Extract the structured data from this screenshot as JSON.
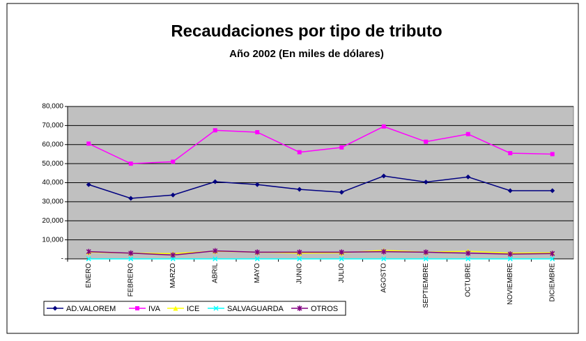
{
  "chart_data": {
    "type": "line",
    "title": "Recaudaciones por tipo de tributo",
    "subtitle": "Año 2002  (En miles de dólares)",
    "categories": [
      "ENERO",
      "FEBRERO",
      "MARZO",
      "ABRIL",
      "MAYO",
      "JUNIO",
      "JULIO",
      "AGOSTO",
      "SEPTIEMBRE",
      "OCTUBRE",
      "NOVIEMBRE",
      "DICIEMBRE"
    ],
    "series": [
      {
        "name": "AD.VALOREM",
        "color": "#000080",
        "values": [
          39000,
          31800,
          33500,
          40500,
          39000,
          36500,
          35000,
          43500,
          40300,
          43000,
          35800,
          35800
        ]
      },
      {
        "name": "IVA",
        "color": "#ff00ff",
        "values": [
          60500,
          50000,
          51000,
          67500,
          66500,
          56000,
          58500,
          69500,
          61500,
          65500,
          55500,
          55000
        ]
      },
      {
        "name": "ICE",
        "color": "#ffff00",
        "values": [
          3500,
          3000,
          2800,
          4000,
          3500,
          3000,
          3200,
          4500,
          3500,
          4000,
          3000,
          3200
        ]
      },
      {
        "name": "SALVAGUARDA",
        "color": "#00ffff",
        "values": [
          0,
          0,
          0,
          0,
          0,
          0,
          0,
          0,
          0,
          0,
          0,
          0
        ]
      },
      {
        "name": "OTROS",
        "color": "#800080",
        "values": [
          3800,
          3000,
          2000,
          4200,
          3500,
          3500,
          3500,
          3800,
          3500,
          3000,
          2500,
          2800
        ]
      }
    ],
    "ylim": [
      0,
      80000
    ],
    "yticks": [
      {
        "value": 0,
        "label": "-"
      },
      {
        "value": 10000,
        "label": "10,000"
      },
      {
        "value": 20000,
        "label": "20,000"
      },
      {
        "value": 30000,
        "label": "30,000"
      },
      {
        "value": 40000,
        "label": "40,000"
      },
      {
        "value": 50000,
        "label": "50,000"
      },
      {
        "value": 60000,
        "label": "60,000"
      },
      {
        "value": 70000,
        "label": "70,000"
      },
      {
        "value": 80000,
        "label": "80,000"
      }
    ],
    "grid": true,
    "legend": "bottom-left",
    "plot_background": "#c0c0c0"
  }
}
